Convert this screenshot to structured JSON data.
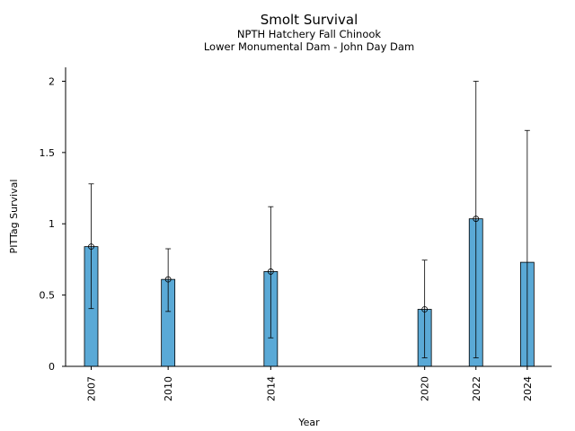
{
  "chart_data": {
    "type": "bar",
    "title": "Smolt Survival",
    "subtitle": [
      "NPTH Hatchery Fall Chinook",
      "Lower Monumental Dam - John Day Dam"
    ],
    "xlabel": "Year",
    "ylabel": "PITTag Survival",
    "categories": [
      "2007",
      "2010",
      "2014",
      "2020",
      "2022",
      "2024"
    ],
    "x": [
      2007,
      2010,
      2014,
      2020,
      2022,
      2024
    ],
    "values": [
      0.84,
      0.61,
      0.665,
      0.4,
      1.035,
      0.73
    ],
    "error_low": [
      0.405,
      0.385,
      0.2,
      0.06,
      0.06,
      0.0
    ],
    "error_high": [
      1.28,
      0.825,
      1.12,
      0.745,
      2.0,
      1.655
    ],
    "point_markers": [
      true,
      true,
      true,
      true,
      true,
      false
    ],
    "ylim": [
      0,
      2.1
    ],
    "yticks": [
      0,
      0.5,
      1,
      1.5,
      2
    ],
    "ytick_labels": [
      "0",
      "0.5",
      "1",
      "1.5",
      "2"
    ],
    "grid": false,
    "colors": {
      "bar": "#5aa9d6",
      "edge": "#000000"
    }
  }
}
